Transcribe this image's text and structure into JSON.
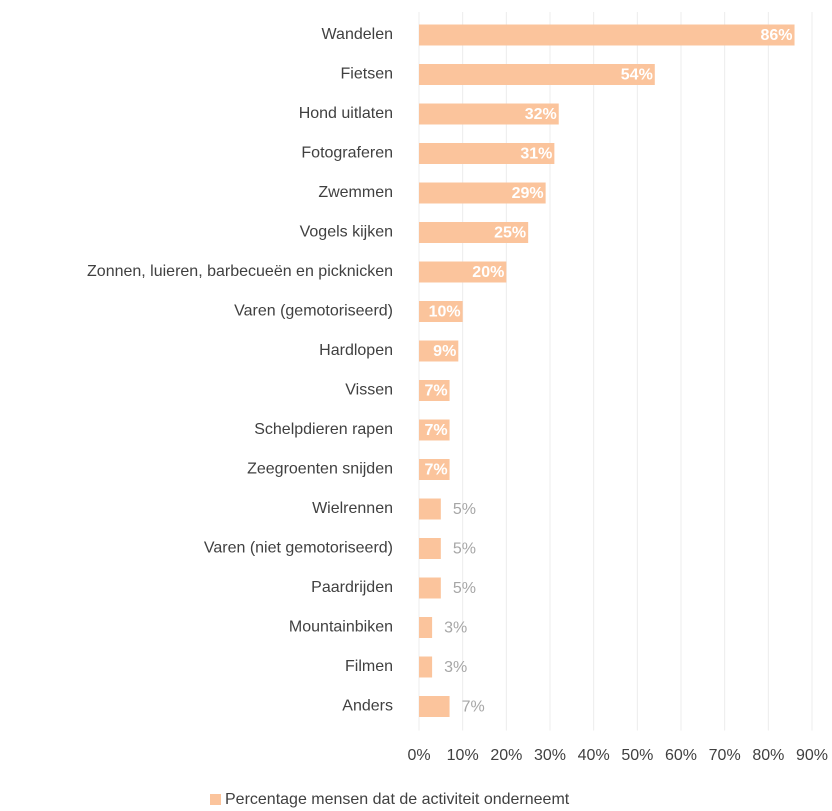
{
  "chart_data": {
    "type": "bar",
    "orientation": "horizontal",
    "categories": [
      "Wandelen",
      "Fietsen",
      "Hond uitlaten",
      "Fotograferen",
      "Zwemmen",
      "Vogels kijken",
      "Zonnen, luieren, barbecueën en picknicken",
      "Varen (gemotoriseerd)",
      "Hardlopen",
      "Vissen",
      "Schelpdieren rapen",
      "Zeegroenten snijden",
      "Wielrennen",
      "Varen (niet gemotoriseerd)",
      "Paardrijden",
      "Mountainbiken",
      "Filmen",
      "Anders"
    ],
    "series": [
      {
        "name": "Percentage mensen dat de activiteit onderneemt",
        "color": "#fbc49c",
        "values": [
          86,
          54,
          32,
          31,
          29,
          25,
          20,
          10,
          9,
          7,
          7,
          7,
          5,
          5,
          5,
          3,
          3,
          7
        ],
        "value_labels": [
          "86%",
          "54%",
          "32%",
          "31%",
          "29%",
          "25%",
          "20%",
          "10%",
          "9%",
          "7%",
          "7%",
          "7%",
          "5%",
          "5%",
          "5%",
          "3%",
          "3%",
          "7%"
        ]
      }
    ],
    "xlim": [
      0,
      90
    ],
    "xticks": [
      {
        "value": 0,
        "label": "0%"
      },
      {
        "value": 10,
        "label": "10%"
      },
      {
        "value": 20,
        "label": "20%"
      },
      {
        "value": 30,
        "label": "30%"
      },
      {
        "value": 40,
        "label": "40%"
      },
      {
        "value": 50,
        "label": "50%"
      },
      {
        "value": 60,
        "label": "60%"
      },
      {
        "value": 70,
        "label": "70%"
      },
      {
        "value": 80,
        "label": "80%"
      },
      {
        "value": 90,
        "label": "90%"
      }
    ],
    "grid": true,
    "legend": "bottom"
  }
}
